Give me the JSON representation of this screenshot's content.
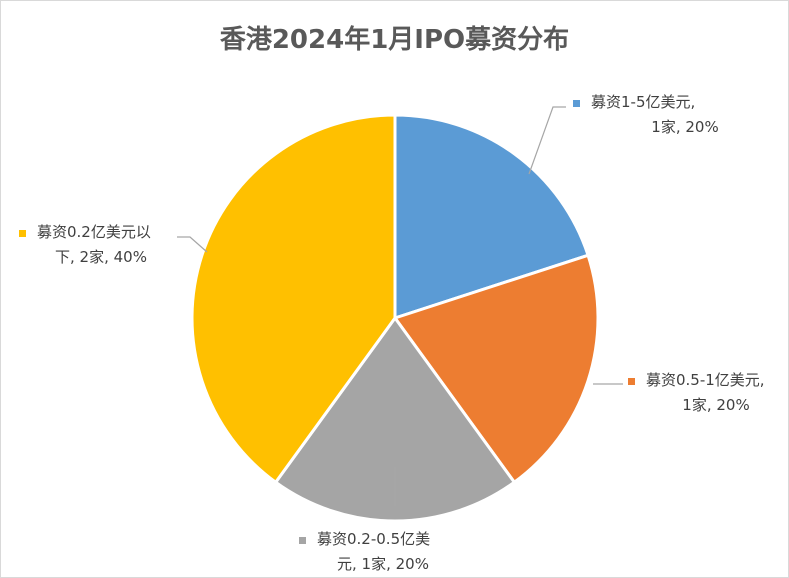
{
  "chart_data": {
    "type": "pie",
    "title": "香港2024年1月IPO募资分布",
    "slices": [
      {
        "label": "募资1-5亿美元",
        "count_text": "1家",
        "pct_text": "20%",
        "value": 20,
        "color": "#5B9BD5",
        "label_lines": [
          "募资1-5亿美元,",
          "1家, 20%"
        ]
      },
      {
        "label": "募资0.5-1亿美元",
        "count_text": "1家",
        "pct_text": "20%",
        "value": 20,
        "color": "#ED7D31",
        "label_lines": [
          "募资0.5-1亿美元,",
          "1家, 20%"
        ]
      },
      {
        "label": "募资0.2-0.5亿美元",
        "count_text": "1家",
        "pct_text": "20%",
        "value": 20,
        "color": "#A5A5A5",
        "label_lines": [
          "募资0.2-0.5亿美",
          "元, 1家, 20%"
        ]
      },
      {
        "label": "募资0.2亿美元以下",
        "count_text": "2家",
        "pct_text": "40%",
        "value": 40,
        "color": "#FFC000",
        "label_lines": [
          "募资0.2亿美元以",
          "下, 2家, 40%"
        ]
      }
    ]
  }
}
